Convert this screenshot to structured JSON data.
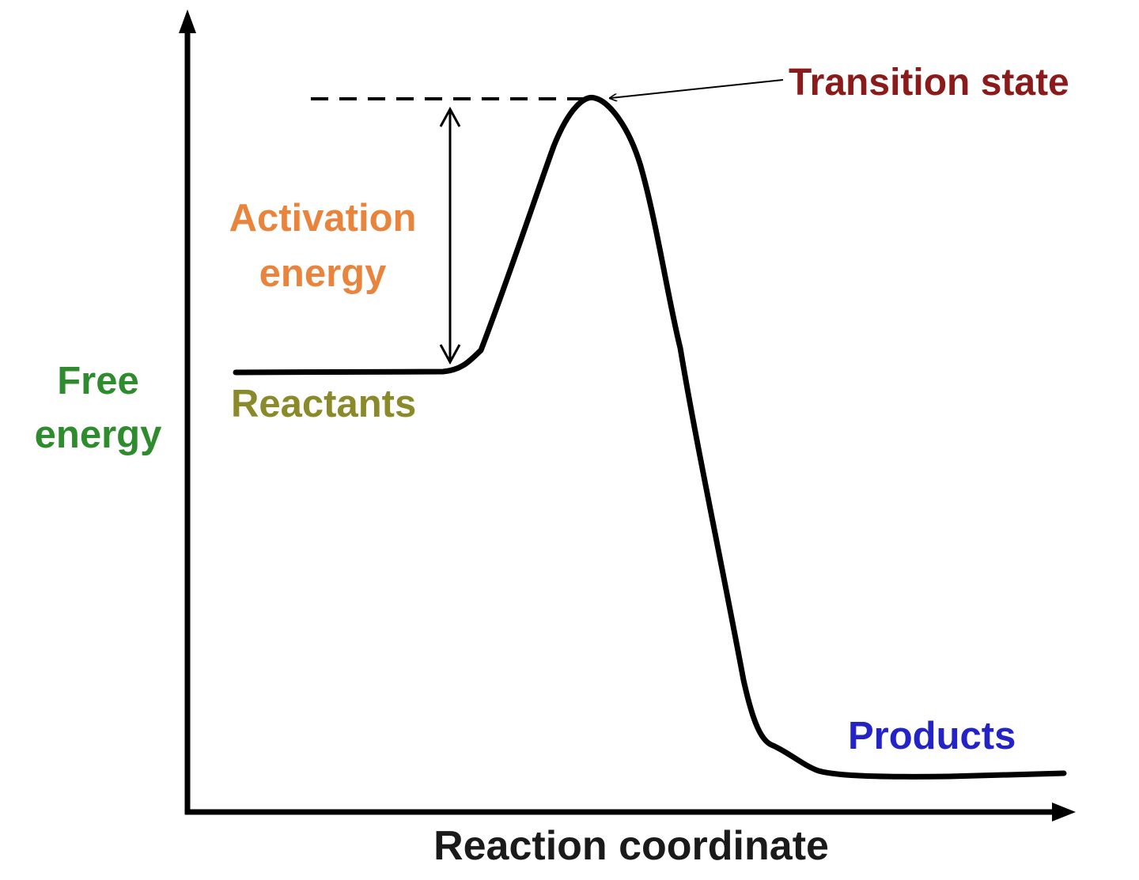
{
  "axes": {
    "y_label_line1": "Free",
    "y_label_line2": "energy",
    "x_label": "Reaction coordinate"
  },
  "annotations": {
    "transition_state": "Transition state",
    "activation_line1": "Activation",
    "activation_line2": "energy",
    "reactants": "Reactants",
    "products": "Products"
  },
  "colors": {
    "axis": "#000000",
    "curve": "#000000",
    "y_label": "#2e8b2e",
    "x_label": "#1a1a1a",
    "transition_state": "#8b1a1a",
    "activation_energy": "#e8843c",
    "reactants": "#8a8a2a",
    "products": "#2323c8"
  }
}
